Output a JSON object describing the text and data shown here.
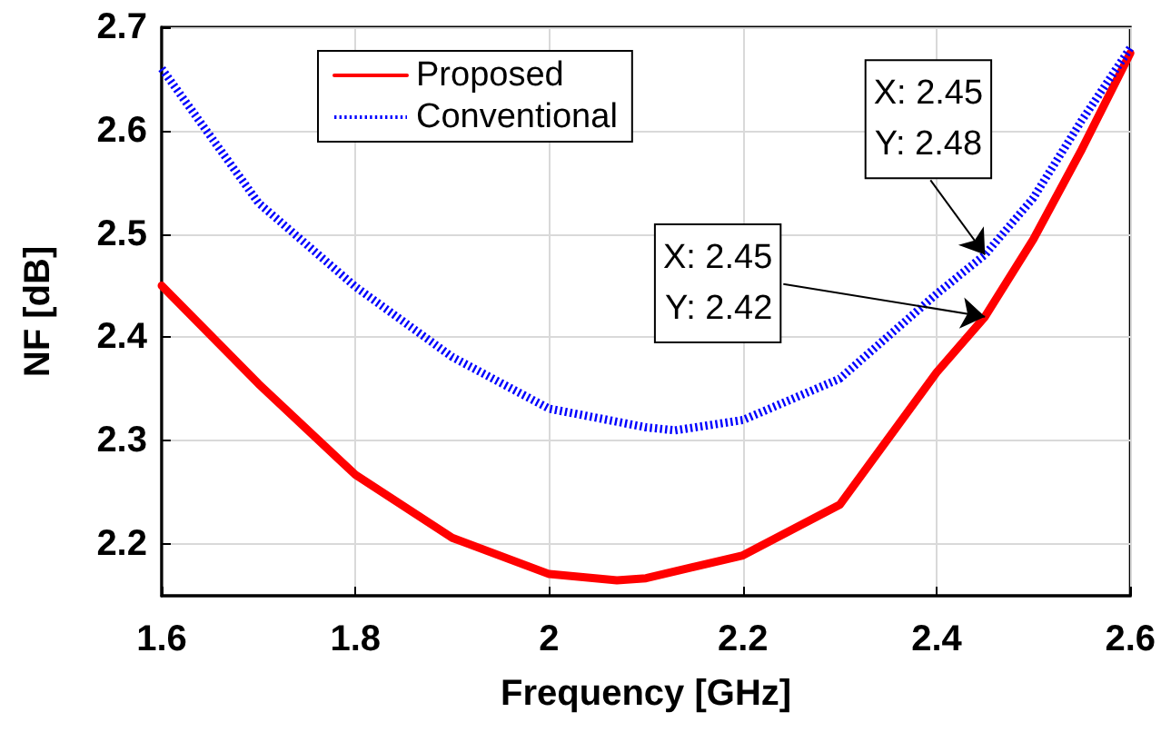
{
  "chart_data": {
    "type": "line",
    "xlabel": "Frequency [GHz]",
    "ylabel": "NF [dB]",
    "xlim": [
      1.6,
      2.6
    ],
    "xticks": [
      1.6,
      1.8,
      2,
      2.2,
      2.4,
      2.6
    ],
    "ylim": [
      2.15,
      2.7
    ],
    "yticks": [
      2.2,
      2.3,
      2.4,
      2.5,
      2.6,
      2.7
    ],
    "grid": true,
    "legend": "top left",
    "marker": "none",
    "series": [
      {
        "name": "Proposed",
        "color": "#ff0000",
        "line_style": "solid",
        "x": [
          1.6,
          1.7,
          1.8,
          1.9,
          2.0,
          2.07,
          2.1,
          2.2,
          2.3,
          2.4,
          2.45,
          2.5,
          2.55,
          2.6
        ],
        "values": [
          2.45,
          2.355,
          2.267,
          2.206,
          2.171,
          2.165,
          2.167,
          2.189,
          2.238,
          2.366,
          2.42,
          2.495,
          2.582,
          2.675
        ]
      },
      {
        "name": "Conventional",
        "color": "#0000ff",
        "line_style": "dotted",
        "x": [
          1.6,
          1.7,
          1.8,
          1.9,
          2.0,
          2.1,
          2.13,
          2.2,
          2.3,
          2.4,
          2.45,
          2.5,
          2.55,
          2.6
        ],
        "values": [
          2.66,
          2.53,
          2.449,
          2.381,
          2.331,
          2.313,
          2.31,
          2.32,
          2.36,
          2.442,
          2.48,
          2.535,
          2.61,
          2.68
        ]
      }
    ],
    "annotations": [
      {
        "text": "X: 2.45\nY: 2.48",
        "x": 2.45,
        "y": 2.48
      },
      {
        "text": "X: 2.45\nY: 2.42",
        "x": 2.45,
        "y": 2.42
      }
    ]
  }
}
